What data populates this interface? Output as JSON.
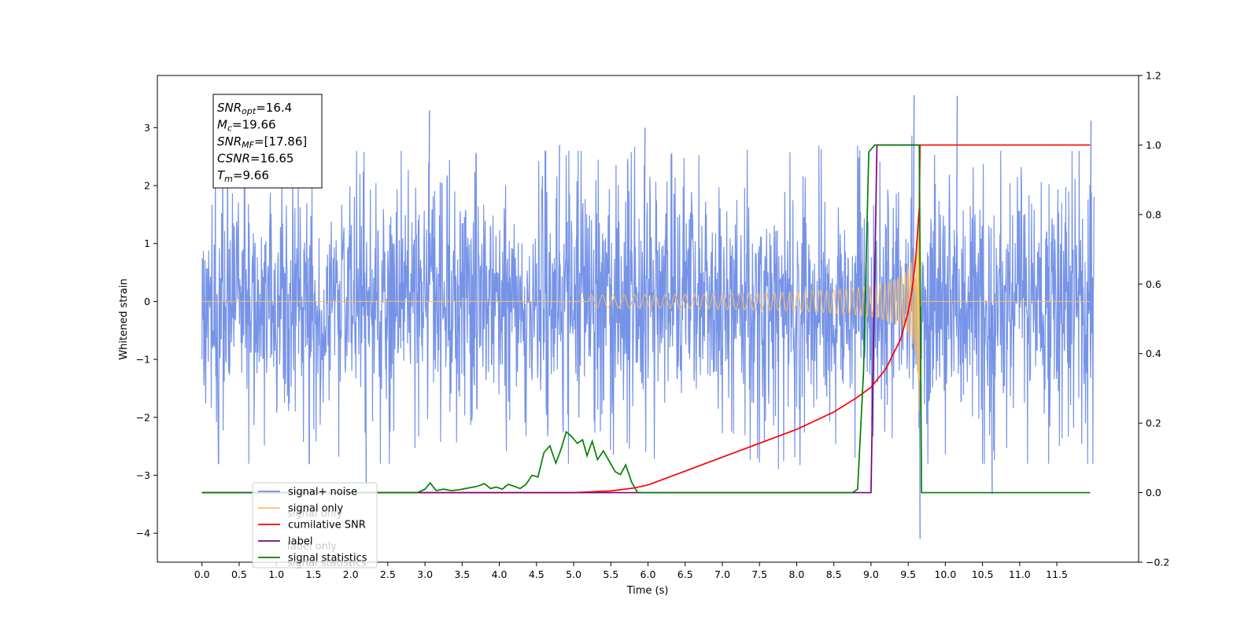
{
  "chart_data": {
    "type": "line",
    "title": "",
    "xlabel": "Time (s)",
    "ylabel": "Whitened strain",
    "ylabel_right": "",
    "xlim": [
      -0.6,
      12.6
    ],
    "ylim": [
      -4.5,
      3.9
    ],
    "ylim_right": [
      -0.2,
      1.2
    ],
    "xticks": [
      0.0,
      0.5,
      1.0,
      1.5,
      2.0,
      2.5,
      3.0,
      3.5,
      4.0,
      4.5,
      5.0,
      5.5,
      6.0,
      6.5,
      7.0,
      7.5,
      8.0,
      8.5,
      9.0,
      9.5,
      10.0,
      10.5,
      11.0,
      11.5
    ],
    "xtick_labels": [
      "0.0",
      "0.5",
      "1.0",
      "1.5",
      "2.0",
      "2.5",
      "3.0",
      "3.5",
      "4.0",
      "4.5",
      "5.0",
      "5.5",
      "6.0",
      "6.5",
      "7.0",
      "7.5",
      "8.0",
      "8.5",
      "9.0",
      "9.5",
      "10.0",
      "10.5",
      "11.0",
      "11.5"
    ],
    "yticks_left": [
      -4,
      -3,
      -2,
      -1,
      0,
      1,
      2,
      3
    ],
    "ytick_labels_left": [
      "−4",
      "−3",
      "−2",
      "−1",
      "0",
      "1",
      "2",
      "3"
    ],
    "yticks_right": [
      -0.2,
      0.0,
      0.2,
      0.4,
      0.6,
      0.8,
      1.0,
      1.2
    ],
    "ytick_labels_right": [
      "−0.2",
      "0.0",
      "0.2",
      "0.4",
      "0.6",
      "0.8",
      "1.0",
      "1.2"
    ],
    "grid": false,
    "legend_placement": "lower-left",
    "annotation_lines": [
      {
        "main": "SNR",
        "sub": "opt",
        "rest": "=16.4"
      },
      {
        "main": "M",
        "sub": "c",
        "rest": "=19.66"
      },
      {
        "main": "SNR",
        "sub": "MF",
        "rest": "=[17.86]"
      },
      {
        "main": "CSNR",
        "sub": "",
        "rest": "=16.65"
      },
      {
        "main": "T",
        "sub": "m",
        "rest": "=9.66"
      }
    ],
    "noise_profile": {
      "t_range": [
        0.0,
        12.0
      ],
      "envelope": 1.25,
      "peak_max": 3.56,
      "trough_min": -4.1,
      "note_peaks": [
        [
          3.05,
          3.3
        ],
        [
          9.57,
          3.56
        ],
        [
          9.65,
          -4.1
        ],
        [
          10.15,
          3.55
        ],
        [
          5.95,
          3.0
        ],
        [
          4.8,
          2.7
        ],
        [
          11.95,
          3.12
        ],
        [
          2.2,
          -3.2
        ],
        [
          10.62,
          -3.32
        ]
      ]
    },
    "series": [
      {
        "name": "signal+ noise",
        "axis": "left",
        "color": "#6f8de6",
        "kind": "noise"
      },
      {
        "name": "signal only",
        "axis": "left",
        "color": "#ffbe5c",
        "kind": "chirp",
        "t_start": 5.2,
        "t_merge": 9.66,
        "amp_start": 0.02,
        "amp_end": 1.9
      },
      {
        "name": "cumilative SNR",
        "axis": "right",
        "color": "#ff0000",
        "x": [
          0.0,
          5.0,
          5.5,
          5.8,
          6.0,
          6.5,
          7.0,
          7.5,
          8.0,
          8.5,
          8.8,
          9.0,
          9.2,
          9.4,
          9.5,
          9.55,
          9.6,
          9.63,
          9.65,
          9.66,
          11.95
        ],
        "y": [
          0.0,
          0.0,
          0.005,
          0.013,
          0.022,
          0.062,
          0.102,
          0.142,
          0.182,
          0.232,
          0.272,
          0.303,
          0.356,
          0.442,
          0.52,
          0.58,
          0.67,
          0.76,
          0.82,
          1.0,
          1.0
        ]
      },
      {
        "name": "label",
        "axis": "right",
        "color": "#800080",
        "x": [
          0.0,
          9.0,
          9.08,
          11.95
        ],
        "y": [
          0.0,
          0.0,
          1.0,
          1.0
        ],
        "stop_at": 9.66
      },
      {
        "name": "signal statistics",
        "axis": "right",
        "color": "#008000",
        "x": [
          0.0,
          2.9,
          3.0,
          3.07,
          3.15,
          3.25,
          3.35,
          3.45,
          3.55,
          3.7,
          3.8,
          3.88,
          3.96,
          4.04,
          4.12,
          4.2,
          4.28,
          4.36,
          4.44,
          4.52,
          4.6,
          4.68,
          4.76,
          4.83,
          4.9,
          4.97,
          5.05,
          5.12,
          5.18,
          5.25,
          5.32,
          5.4,
          5.48,
          5.56,
          5.63,
          5.7,
          5.78,
          5.86,
          8.75,
          8.82,
          8.9,
          8.97,
          9.05,
          9.65,
          9.68,
          11.95
        ],
        "y": [
          0.0,
          0.0,
          0.01,
          0.028,
          0.006,
          0.01,
          0.006,
          0.008,
          0.012,
          0.018,
          0.026,
          0.012,
          0.016,
          0.01,
          0.024,
          0.018,
          0.012,
          0.024,
          0.05,
          0.045,
          0.115,
          0.135,
          0.085,
          0.125,
          0.175,
          0.162,
          0.142,
          0.152,
          0.106,
          0.148,
          0.095,
          0.12,
          0.09,
          0.06,
          0.052,
          0.08,
          0.03,
          0.0,
          0.0,
          0.01,
          0.35,
          0.98,
          1.0,
          1.0,
          0.0,
          0.0
        ]
      }
    ],
    "legend_entries": [
      "signal+ noise",
      "signal only",
      "cumilative SNR",
      "label",
      "signal statistics"
    ],
    "legend_ghost_labels": [
      "signal only",
      "label only",
      "signal statistics"
    ]
  }
}
